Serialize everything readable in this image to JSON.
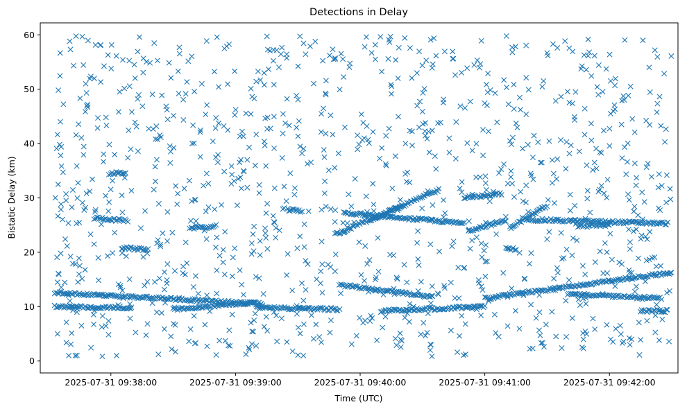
{
  "chart_data": {
    "type": "scatter",
    "title": "Detections in Delay",
    "xlabel": "Time (UTC)",
    "ylabel": "Bistatic Delay (km)",
    "x_tick_labels": [
      "2025-07-31 09:38:00",
      "2025-07-31 09:39:00",
      "2025-07-31 09:40:00",
      "2025-07-31 09:41:00",
      "2025-07-31 09:42:00"
    ],
    "y_tick_labels": [
      "0",
      "10",
      "20",
      "30",
      "40",
      "50",
      "60"
    ],
    "xlim": [
      "2025-07-31 09:37:26",
      "2025-07-31 09:42:33"
    ],
    "ylim": [
      -2.2,
      62.2
    ],
    "grid": false,
    "marker": "x",
    "color": "#1f77b4",
    "tracks": [
      {
        "x_start": "2025-07-31 09:37:33",
        "x_end": "2025-07-31 09:39:13",
        "y_start": 12.6,
        "y_end": 10.5
      },
      {
        "x_start": "2025-07-31 09:37:33",
        "x_end": "2025-07-31 09:38:10",
        "y_start": 10.0,
        "y_end": 9.8
      },
      {
        "x_start": "2025-07-31 09:38:30",
        "x_end": "2025-07-31 09:39:10",
        "y_start": 9.5,
        "y_end": 10.8
      },
      {
        "x_start": "2025-07-31 09:39:10",
        "x_end": "2025-07-31 09:39:50",
        "y_start": 9.8,
        "y_end": 9.5
      },
      {
        "x_start": "2025-07-31 09:39:50",
        "x_end": "2025-07-31 09:40:35",
        "y_start": 14.0,
        "y_end": 11.8
      },
      {
        "x_start": "2025-07-31 09:40:10",
        "x_end": "2025-07-31 09:41:00",
        "y_start": 9.2,
        "y_end": 10.0
      },
      {
        "x_start": "2025-07-31 09:41:00",
        "x_end": "2025-07-31 09:42:30",
        "y_start": 11.5,
        "y_end": 16.3
      },
      {
        "x_start": "2025-07-31 09:41:40",
        "x_end": "2025-07-31 09:42:25",
        "y_start": 12.3,
        "y_end": 11.5
      },
      {
        "x_start": "2025-07-31 09:42:15",
        "x_end": "2025-07-31 09:42:28",
        "y_start": 9.2,
        "y_end": 9.2
      },
      {
        "x_start": "2025-07-31 09:39:48",
        "x_end": "2025-07-31 09:40:20",
        "y_start": 23.3,
        "y_end": 28.5
      },
      {
        "x_start": "2025-07-31 09:39:52",
        "x_end": "2025-07-31 09:40:50",
        "y_start": 27.3,
        "y_end": 25.3
      },
      {
        "x_start": "2025-07-31 09:40:05",
        "x_end": "2025-07-31 09:40:38",
        "y_start": 26.0,
        "y_end": 31.5
      },
      {
        "x_start": "2025-07-31 09:40:52",
        "x_end": "2025-07-31 09:41:10",
        "y_start": 24.0,
        "y_end": 25.8
      },
      {
        "x_start": "2025-07-31 09:41:12",
        "x_end": "2025-07-31 09:41:30",
        "y_start": 24.5,
        "y_end": 28.5
      },
      {
        "x_start": "2025-07-31 09:41:20",
        "x_end": "2025-07-31 09:42:28",
        "y_start": 26.0,
        "y_end": 25.3
      },
      {
        "x_start": "2025-07-31 09:41:45",
        "x_end": "2025-07-31 09:42:00",
        "y_start": 24.8,
        "y_end": 25.0
      },
      {
        "x_start": "2025-07-31 09:37:52",
        "x_end": "2025-07-31 09:38:08",
        "y_start": 26.3,
        "y_end": 25.8
      },
      {
        "x_start": "2025-07-31 09:38:00",
        "x_end": "2025-07-31 09:38:07",
        "y_start": 34.5,
        "y_end": 34.6
      },
      {
        "x_start": "2025-07-31 09:38:05",
        "x_end": "2025-07-31 09:38:18",
        "y_start": 20.8,
        "y_end": 20.5
      },
      {
        "x_start": "2025-07-31 09:38:38",
        "x_end": "2025-07-31 09:38:50",
        "y_start": 24.5,
        "y_end": 24.6
      },
      {
        "x_start": "2025-07-31 09:39:25",
        "x_end": "2025-07-31 09:39:32",
        "y_start": 27.8,
        "y_end": 27.6
      },
      {
        "x_start": "2025-07-31 09:40:50",
        "x_end": "2025-07-31 09:41:08",
        "y_start": 30.0,
        "y_end": 30.8
      },
      {
        "x_start": "2025-07-31 09:41:10",
        "x_end": "2025-07-31 09:41:15",
        "y_start": 20.6,
        "y_end": 20.6
      }
    ],
    "scatter_region": {
      "x_from": "2025-07-31 09:37:33",
      "x_to": "2025-07-31 09:42:30",
      "y_from": 0.8,
      "y_to": 59.8
    }
  }
}
